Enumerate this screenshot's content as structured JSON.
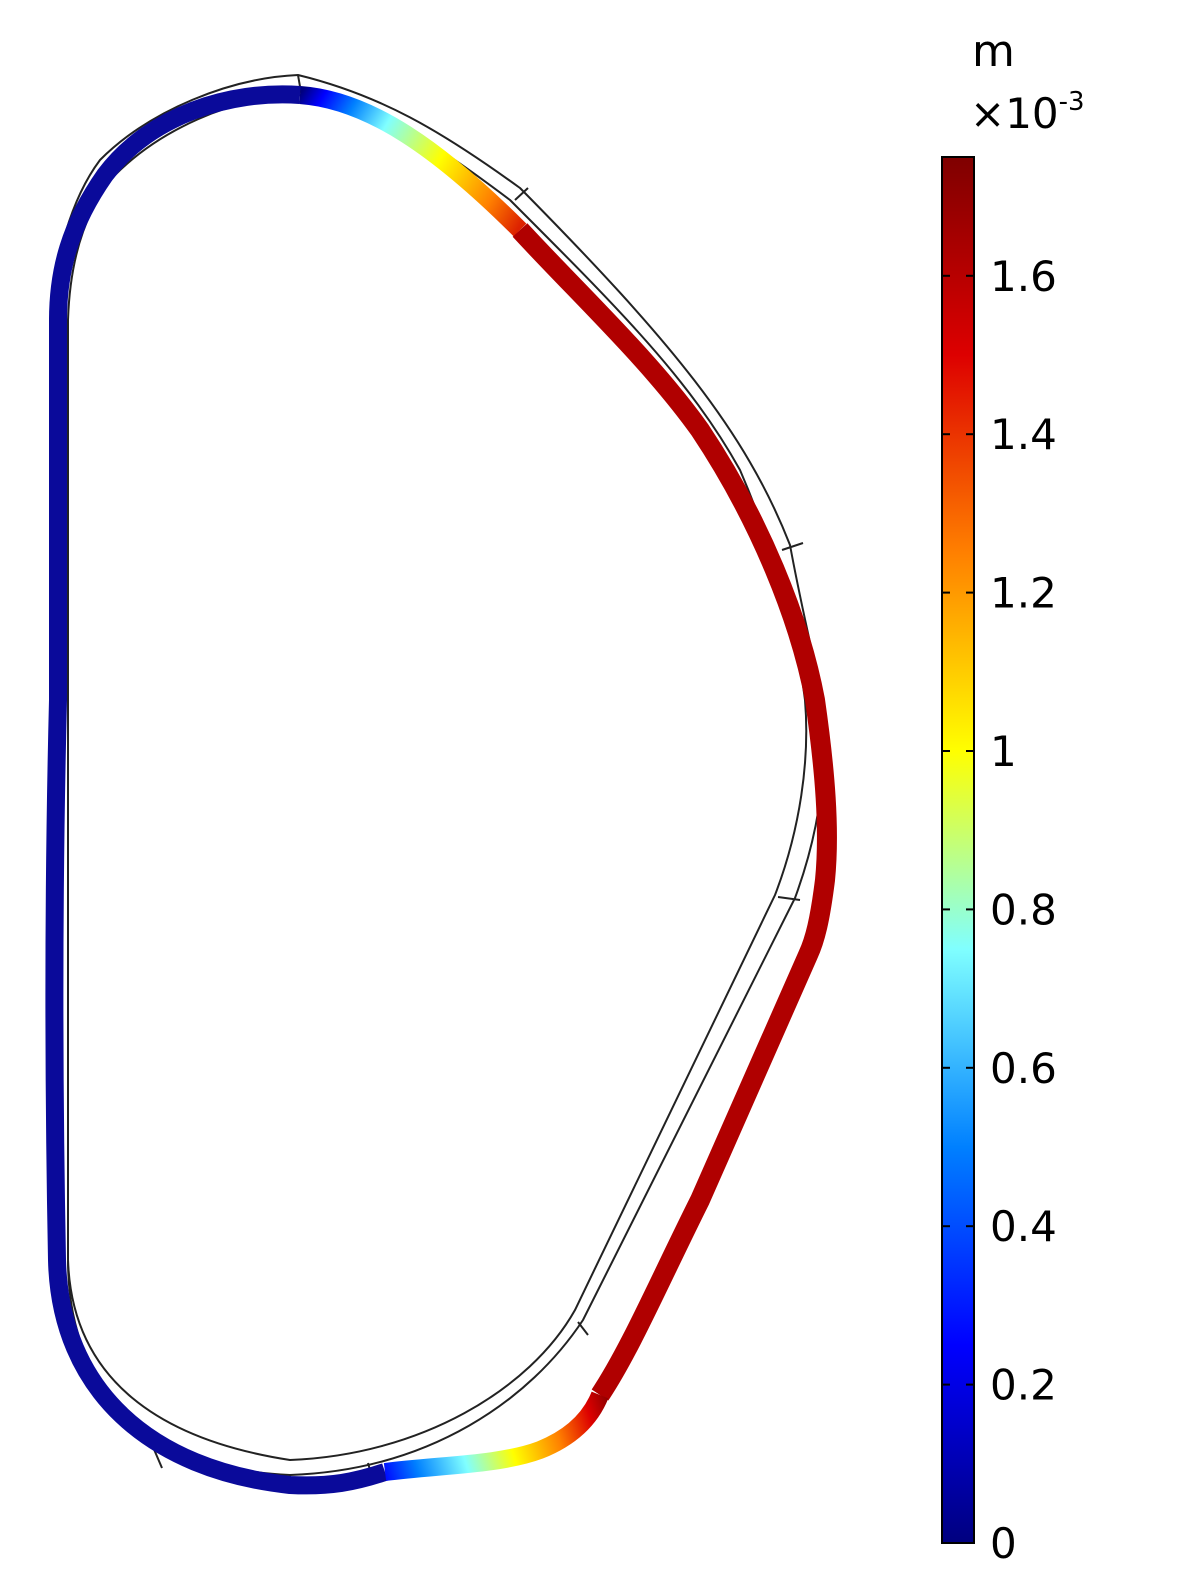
{
  "colorbar": {
    "unit": "m",
    "multiplier_base": "×10",
    "multiplier_exponent": "-3",
    "colormap": "rainbow",
    "stops": [
      "#00007f",
      "#0000ff",
      "#0080ff",
      "#80ffff",
      "#ffff00",
      "#ff8000",
      "#dd0000",
      "#7f0000"
    ],
    "range": [
      0,
      1.75
    ],
    "ticks": [
      {
        "value": 0,
        "label": "0"
      },
      {
        "value": 0.2,
        "label": "0.2"
      },
      {
        "value": 0.4,
        "label": "0.4"
      },
      {
        "value": 0.6,
        "label": "0.6"
      },
      {
        "value": 0.8,
        "label": "0.8"
      },
      {
        "value": 1.0,
        "label": "1"
      },
      {
        "value": 1.2,
        "label": "1.2"
      },
      {
        "value": 1.4,
        "label": "1.4"
      },
      {
        "value": 1.6,
        "label": "1.6"
      }
    ]
  },
  "chart_data": {
    "type": "field-plot",
    "quantity_unit": "m ×10^-3",
    "value_range": [
      0,
      1.75
    ],
    "regions": [
      {
        "region": "inboard straight wall",
        "value": 0.05
      },
      {
        "region": "top arc",
        "value": 0.1
      },
      {
        "region": "upper outboard shoulder",
        "value": 1.2
      },
      {
        "region": "outboard upper wall",
        "value": 1.7
      },
      {
        "region": "outboard midplane",
        "value": 1.55
      },
      {
        "region": "outboard lower wall",
        "value": 1.7
      },
      {
        "region": "lower outboard corner",
        "value": 1.55
      },
      {
        "region": "bottom transition",
        "value": 0.5
      },
      {
        "region": "bottom arc",
        "value": 0.05
      }
    ]
  }
}
